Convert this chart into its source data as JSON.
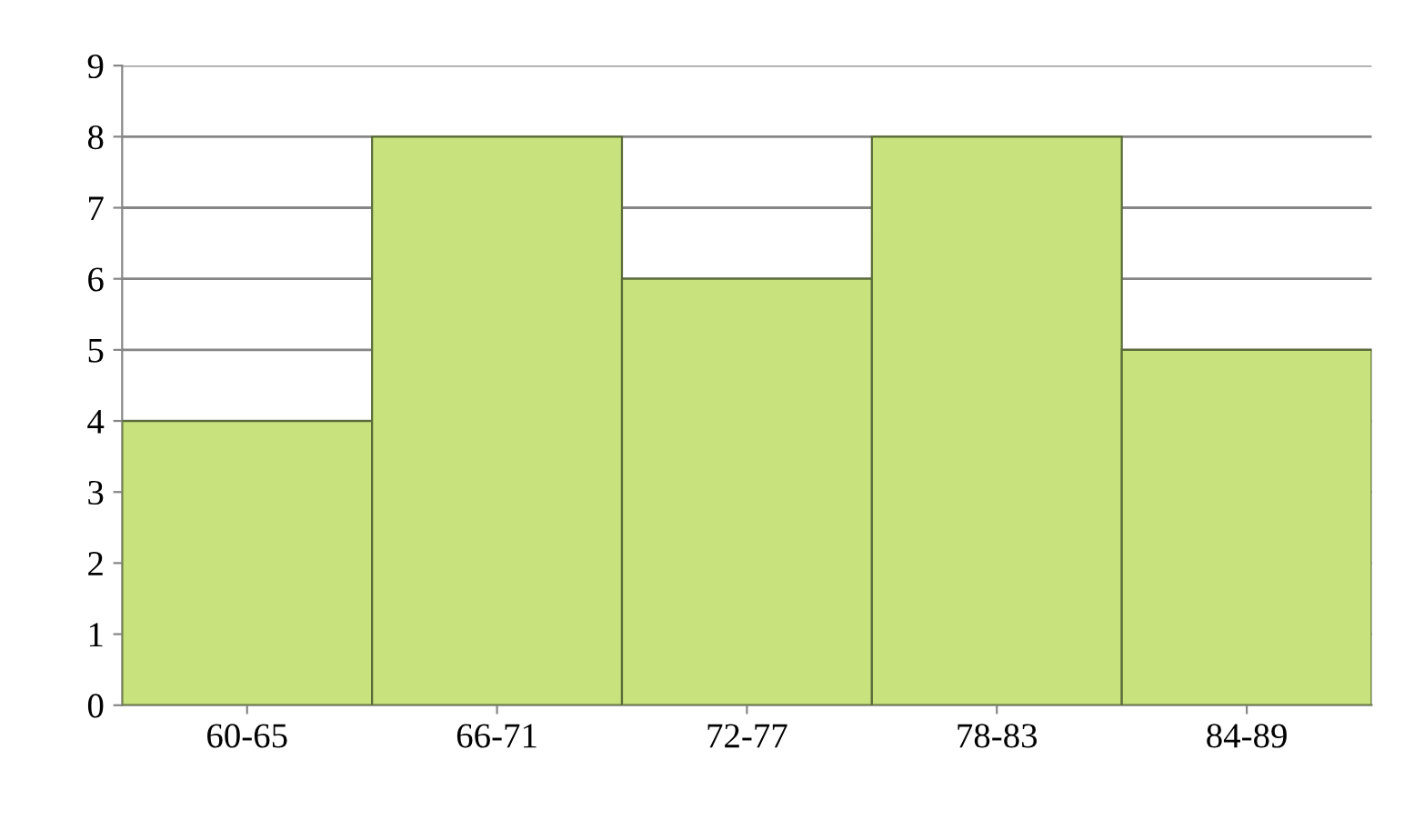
{
  "chart_data": {
    "type": "bar",
    "categories": [
      "60-65",
      "66-71",
      "72-77",
      "78-83",
      "84-89"
    ],
    "values": [
      4,
      8,
      6,
      8,
      5
    ],
    "color": "#c8e27e",
    "ylim": [
      0,
      9
    ],
    "yticks": [
      0,
      1,
      2,
      3,
      4,
      5,
      6,
      7,
      8,
      9
    ],
    "grid": "y",
    "legend": false
  }
}
